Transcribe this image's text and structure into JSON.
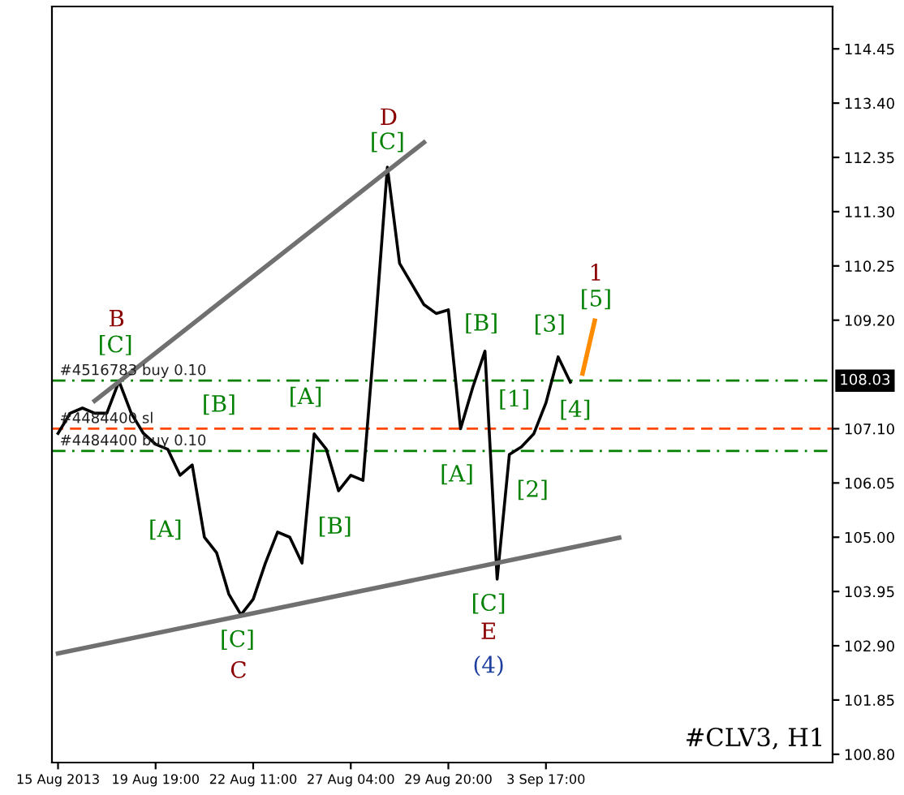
{
  "chart_data": {
    "type": "line",
    "categories": [
      "15 Aug 2013",
      null,
      null,
      null,
      null,
      null,
      null,
      null,
      "19 Aug 19:00",
      null,
      null,
      null,
      null,
      null,
      null,
      null,
      "22 Aug 11:00",
      null,
      null,
      null,
      null,
      null,
      null,
      null,
      "27 Aug 04:00",
      null,
      null,
      null,
      null,
      null,
      null,
      null,
      "29 Aug 20:00",
      null,
      null,
      null,
      null,
      null,
      null,
      null,
      "3 Sep 17:00",
      null,
      null,
      null,
      null,
      null,
      null,
      null,
      null,
      null,
      null,
      null,
      null,
      null,
      null,
      null,
      null,
      null,
      null,
      null,
      null,
      null,
      null,
      null
    ],
    "ylim": [
      100.64,
      115.27
    ],
    "yticks": [
      {
        "value": 100.8,
        "label": "100.80"
      },
      {
        "value": 101.85,
        "label": "101.85"
      },
      {
        "value": 102.9,
        "label": "102.90"
      },
      {
        "value": 103.95,
        "label": "103.95"
      },
      {
        "value": 105.0,
        "label": "105.00"
      },
      {
        "value": 106.05,
        "label": "106.05"
      },
      {
        "value": 107.1,
        "label": "107.10"
      },
      {
        "value": 109.2,
        "label": "109.20"
      },
      {
        "value": 110.25,
        "label": "110.25"
      },
      {
        "value": 111.3,
        "label": "111.30"
      },
      {
        "value": 112.35,
        "label": "112.35"
      },
      {
        "value": 113.4,
        "label": "113.40"
      },
      {
        "value": 114.45,
        "label": "114.45"
      }
    ],
    "grid": false,
    "legend": false,
    "series": [
      {
        "color": "#000000",
        "values": [
          107.01,
          107.4,
          107.5,
          107.4,
          107.4,
          108.02,
          107.4,
          107.01,
          106.8,
          106.7,
          106.2,
          106.4,
          105.0,
          104.7,
          103.9,
          103.5,
          103.8,
          104.5,
          105.1,
          105.0,
          104.5,
          107.0,
          106.7,
          105.9,
          106.2,
          106.1,
          109.02,
          112.16,
          110.3,
          109.9,
          109.5,
          109.33,
          109.4,
          107.1,
          107.9,
          108.6,
          104.19,
          106.6,
          106.75,
          107.0,
          107.6,
          108.49,
          108.0,
          null,
          null,
          null,
          null,
          null,
          null,
          null,
          null,
          null,
          null,
          null,
          null,
          null,
          null,
          null,
          null,
          null,
          null,
          null,
          null,
          null
        ]
      },
      {
        "color": "#707070",
        "values": [
          null,
          null,
          null,
          107.64,
          null,
          null,
          null,
          null,
          null,
          null,
          null,
          null,
          null,
          null,
          null,
          null,
          null,
          null,
          null,
          null,
          null,
          null,
          null,
          null,
          null,
          null,
          null,
          null,
          null,
          null,
          112.64,
          null,
          null,
          null,
          null,
          null,
          null,
          null,
          null,
          null,
          null,
          null,
          null,
          null,
          null,
          null,
          null,
          null,
          null,
          null,
          null,
          null,
          null,
          null,
          null,
          null,
          null,
          null,
          null,
          null,
          null,
          null,
          null,
          null
        ]
      },
      {
        "color": "#707070",
        "values": [
          102.75,
          null,
          null,
          null,
          null,
          null,
          null,
          null,
          null,
          null,
          null,
          null,
          null,
          null,
          null,
          null,
          null,
          null,
          null,
          null,
          null,
          null,
          null,
          null,
          null,
          null,
          null,
          null,
          null,
          null,
          null,
          null,
          null,
          null,
          null,
          null,
          null,
          null,
          null,
          null,
          null,
          null,
          null,
          null,
          null,
          null,
          104.99,
          null,
          null,
          null,
          null,
          null,
          null,
          null,
          null,
          null,
          null,
          null,
          null,
          null,
          null,
          null,
          null,
          null
        ]
      },
      {
        "color": "#ff8c00",
        "values": [
          null,
          null,
          null,
          null,
          null,
          null,
          null,
          null,
          null,
          null,
          null,
          null,
          null,
          null,
          null,
          null,
          null,
          null,
          null,
          null,
          null,
          null,
          null,
          null,
          null,
          null,
          null,
          null,
          null,
          null,
          null,
          null,
          null,
          null,
          null,
          null,
          null,
          null,
          null,
          null,
          null,
          null,
          null,
          108.17,
          109.19,
          null,
          null,
          null,
          null,
          null,
          null,
          null,
          null,
          null,
          null,
          null,
          null,
          null,
          null,
          null,
          null,
          null,
          null,
          null
        ]
      }
    ],
    "ref_lines": [
      {
        "axis": "y",
        "value": 108.03,
        "label": "#4516783 buy 0.10",
        "color": "#008000",
        "line_style": "dashdot"
      },
      {
        "axis": "y",
        "value": 107.1,
        "label": "#4484400 sl",
        "color": "#ff4500",
        "line_style": "dashed"
      },
      {
        "axis": "y",
        "value": 106.67,
        "label": "#4484400 buy 0.10",
        "color": "#008000",
        "line_style": "dashdot"
      }
    ],
    "annotations": [
      "B",
      "[C]",
      "[A]",
      "[B]",
      "[C]",
      "C",
      "[A]",
      "[B]",
      "D",
      "[C]",
      "[A]",
      "[B]",
      "[C]",
      "E",
      "(4)",
      "[1]",
      "[2]",
      "[3]",
      "[4]",
      "1",
      "[5]",
      {
        "text": "108.03",
        "y": 108.03
      },
      "#CLV3, H1"
    ]
  }
}
